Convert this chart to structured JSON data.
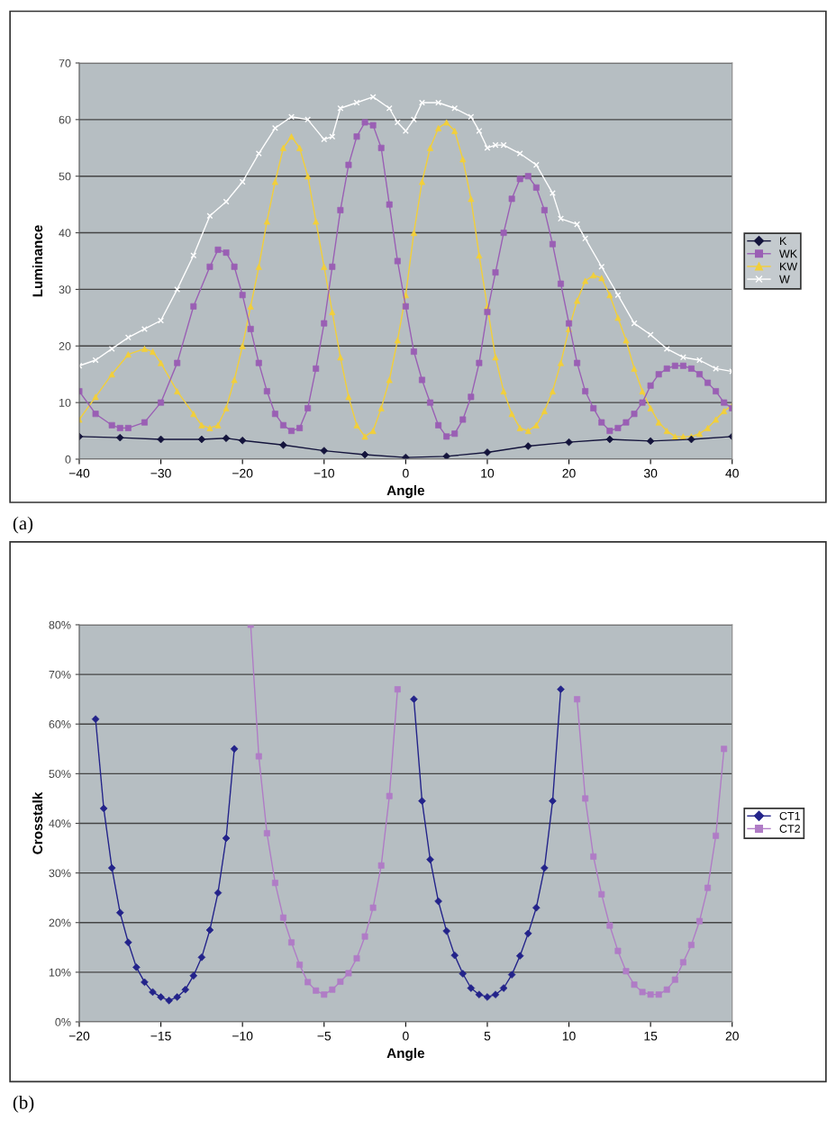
{
  "chart_data": [
    {
      "type": "line",
      "xlabel": "Angle",
      "ylabel": "Luminance",
      "legend": "right",
      "grid": "y",
      "annotations": [
        "(a)"
      ],
      "xlim": [
        -40,
        40
      ],
      "ylim": [
        0,
        70
      ],
      "xticks": [
        {
          "value": -40,
          "label": "−40"
        },
        {
          "value": -30,
          "label": "−30"
        },
        {
          "value": -20,
          "label": "−20"
        },
        {
          "value": -10,
          "label": "−10"
        },
        0,
        10,
        20,
        30,
        40
      ],
      "yticks": [
        0,
        10,
        20,
        30,
        40,
        50,
        60,
        70
      ],
      "series": [
        {
          "name": "K",
          "color": "#14143c",
          "marker": "diamond",
          "x": [
            -40,
            -35,
            -30,
            -25,
            -22,
            -20,
            -15,
            -10,
            -5,
            0,
            5,
            10,
            15,
            20,
            25,
            30,
            35,
            40
          ],
          "values": [
            4,
            3.8,
            3.5,
            3.5,
            3.7,
            3.3,
            2.5,
            1.5,
            0.8,
            0.3,
            0.5,
            1.2,
            2.3,
            3,
            3.5,
            3.2,
            3.5,
            4
          ]
        },
        {
          "name": "WK",
          "color": "#9a5fb4",
          "marker": "square",
          "x": [
            -40,
            -38,
            -36,
            -35,
            -34,
            -32,
            -30,
            -28,
            -26,
            -24,
            -23,
            -22,
            -21,
            -20,
            -19,
            -18,
            -17,
            -16,
            -15,
            -14,
            -13,
            -12,
            -11,
            -10,
            -9,
            -8,
            -7,
            -6,
            -5,
            -4,
            -3,
            -2,
            -1,
            0,
            1,
            2,
            3,
            4,
            5,
            6,
            7,
            8,
            9,
            10,
            11,
            12,
            13,
            14,
            15,
            16,
            17,
            18,
            19,
            20,
            21,
            22,
            23,
            24,
            25,
            26,
            27,
            28,
            29,
            30,
            31,
            32,
            33,
            34,
            35,
            36,
            37,
            38,
            39,
            40
          ],
          "values": [
            12,
            8,
            6,
            5.5,
            5.5,
            6.5,
            10,
            17,
            27,
            34,
            37,
            36.5,
            34,
            29,
            23,
            17,
            12,
            8,
            6,
            5,
            5.5,
            9,
            16,
            24,
            34,
            44,
            52,
            57,
            59.5,
            59,
            55,
            45,
            35,
            27,
            19,
            14,
            10,
            6,
            4,
            4.5,
            7,
            11,
            17,
            26,
            33,
            40,
            46,
            49.5,
            50,
            48,
            44,
            38,
            31,
            24,
            17,
            12,
            9,
            6.5,
            5,
            5.5,
            6.5,
            8,
            10,
            13,
            15,
            16,
            16.5,
            16.5,
            16,
            15,
            13.5,
            12,
            10,
            9
          ]
        },
        {
          "name": "KW",
          "color": "#f2cf3a",
          "marker": "triangle",
          "x": [
            -40,
            -38,
            -36,
            -34,
            -32,
            -31,
            -30,
            -28,
            -26,
            -25,
            -24,
            -23,
            -22,
            -21,
            -20,
            -19,
            -18,
            -17,
            -16,
            -15,
            -14,
            -13,
            -12,
            -11,
            -10,
            -9,
            -8,
            -7,
            -6,
            -5,
            -4,
            -3,
            -2,
            -1,
            0,
            1,
            2,
            3,
            4,
            5,
            6,
            7,
            8,
            9,
            10,
            11,
            12,
            13,
            14,
            15,
            16,
            17,
            18,
            19,
            20,
            21,
            22,
            23,
            24,
            25,
            26,
            27,
            28,
            29,
            30,
            31,
            32,
            33,
            34,
            35,
            36,
            37,
            38,
            39,
            40
          ],
          "values": [
            7,
            11,
            15,
            18.5,
            19.5,
            19,
            17,
            12,
            8,
            6,
            5.5,
            6,
            9,
            14,
            20,
            27,
            34,
            42,
            49,
            55,
            57,
            55,
            50,
            42,
            34,
            26,
            18,
            11,
            6,
            4,
            5,
            9,
            14,
            21,
            29,
            40,
            49,
            55,
            58.5,
            59.5,
            58,
            53,
            46,
            36,
            27,
            18,
            12,
            8,
            5.5,
            5,
            6,
            8.5,
            12,
            17,
            23,
            28,
            31.5,
            32.5,
            32,
            29,
            25,
            21,
            16,
            12,
            9,
            6.5,
            5,
            4,
            4,
            4,
            4.5,
            5.5,
            7,
            8.5,
            9.5
          ]
        },
        {
          "name": "W",
          "color": "#ffffff",
          "marker": "cross",
          "x": [
            -40,
            -38,
            -36,
            -34,
            -32,
            -30,
            -28,
            -26,
            -24,
            -22,
            -20,
            -18,
            -16,
            -14,
            -12,
            -10,
            -9,
            -8,
            -6,
            -4,
            -2,
            -1,
            0,
            1,
            2,
            4,
            6,
            8,
            9,
            10,
            11,
            12,
            14,
            16,
            18,
            19,
            21,
            22,
            24,
            26,
            28,
            30,
            32,
            34,
            36,
            38,
            40
          ],
          "values": [
            16.5,
            17.5,
            19.5,
            21.5,
            23,
            24.5,
            30,
            36,
            43,
            45.5,
            49,
            54,
            58.5,
            60.5,
            60,
            56.5,
            57,
            62,
            63,
            64,
            62,
            59.5,
            58,
            60,
            63,
            63,
            62,
            60.5,
            58,
            55,
            55.5,
            55.5,
            54,
            52,
            47,
            42.5,
            41.5,
            39,
            34,
            29,
            24,
            22,
            19.5,
            18,
            17.5,
            16,
            15.5
          ]
        }
      ]
    },
    {
      "type": "line",
      "xlabel": "Angle",
      "ylabel": "Crosstalk",
      "legend": "right",
      "grid": "y",
      "annotations": [
        "(b)"
      ],
      "xlim": [
        -20,
        20
      ],
      "ylim": [
        0,
        80
      ],
      "xticks": [
        {
          "value": -20,
          "label": "−20"
        },
        {
          "value": -15,
          "label": "−15"
        },
        {
          "value": -10,
          "label": "−10"
        },
        {
          "value": -5,
          "label": "−5"
        },
        0,
        5,
        10,
        15,
        20
      ],
      "yticks": [
        {
          "value": 0,
          "label": "0%"
        },
        {
          "value": 10,
          "label": "10%"
        },
        {
          "value": 20,
          "label": "20%"
        },
        {
          "value": 30,
          "label": "30%"
        },
        {
          "value": 40,
          "label": "40%"
        },
        {
          "value": 50,
          "label": "50%"
        },
        {
          "value": 60,
          "label": "60%"
        },
        {
          "value": 70,
          "label": "70%"
        },
        {
          "value": 80,
          "label": "80%"
        }
      ],
      "series": [
        {
          "name": "CT1",
          "color": "#23238a",
          "marker": "diamond",
          "x": [
            -19,
            -18.5,
            -18,
            -17.5,
            -17,
            -16.5,
            -16,
            -15.5,
            -15,
            -14.5,
            -14,
            -13.5,
            -13,
            -12.5,
            -12,
            -11.5,
            -11,
            -10.5,
            null,
            0.5,
            1,
            1.5,
            2,
            2.5,
            3,
            3.5,
            4,
            4.5,
            5,
            5.5,
            6,
            6.5,
            7,
            7.5,
            8,
            8.5,
            9,
            9.5
          ],
          "values": [
            61,
            43,
            31,
            22,
            16,
            11,
            8,
            6,
            5,
            4.3,
            5,
            6.5,
            9.3,
            13,
            18.5,
            26,
            37,
            55,
            null,
            65,
            44.5,
            32.7,
            24.3,
            18.3,
            13.4,
            9.7,
            6.8,
            5.5,
            5,
            5.5,
            6.8,
            9.5,
            13.3,
            17.8,
            23,
            31,
            44.5,
            67
          ]
        },
        {
          "name": "CT2",
          "color": "#b07cc6",
          "marker": "square",
          "x": [
            -9.5,
            -9,
            -8.5,
            -8,
            -7.5,
            -7,
            -6.5,
            -6,
            -5.5,
            -5,
            -4.5,
            -4,
            -3.5,
            -3,
            -2.5,
            -2,
            -1.5,
            -1,
            -0.5,
            null,
            10.5,
            11,
            11.5,
            12,
            12.5,
            13,
            13.5,
            14,
            14.5,
            15,
            15.5,
            16,
            16.5,
            17,
            17.5,
            18,
            18.5,
            19,
            19.5
          ],
          "values": [
            80,
            53.5,
            38,
            28,
            21,
            16,
            11.5,
            8,
            6.3,
            5.5,
            6.5,
            8.1,
            9.8,
            12.8,
            17.2,
            23,
            31.5,
            45.5,
            67,
            null,
            65,
            45,
            33.3,
            25.7,
            19.4,
            14.3,
            10.2,
            7.5,
            6,
            5.5,
            5.5,
            6.5,
            8.5,
            12,
            15.5,
            20.3,
            27,
            37.5,
            55
          ]
        }
      ]
    }
  ]
}
